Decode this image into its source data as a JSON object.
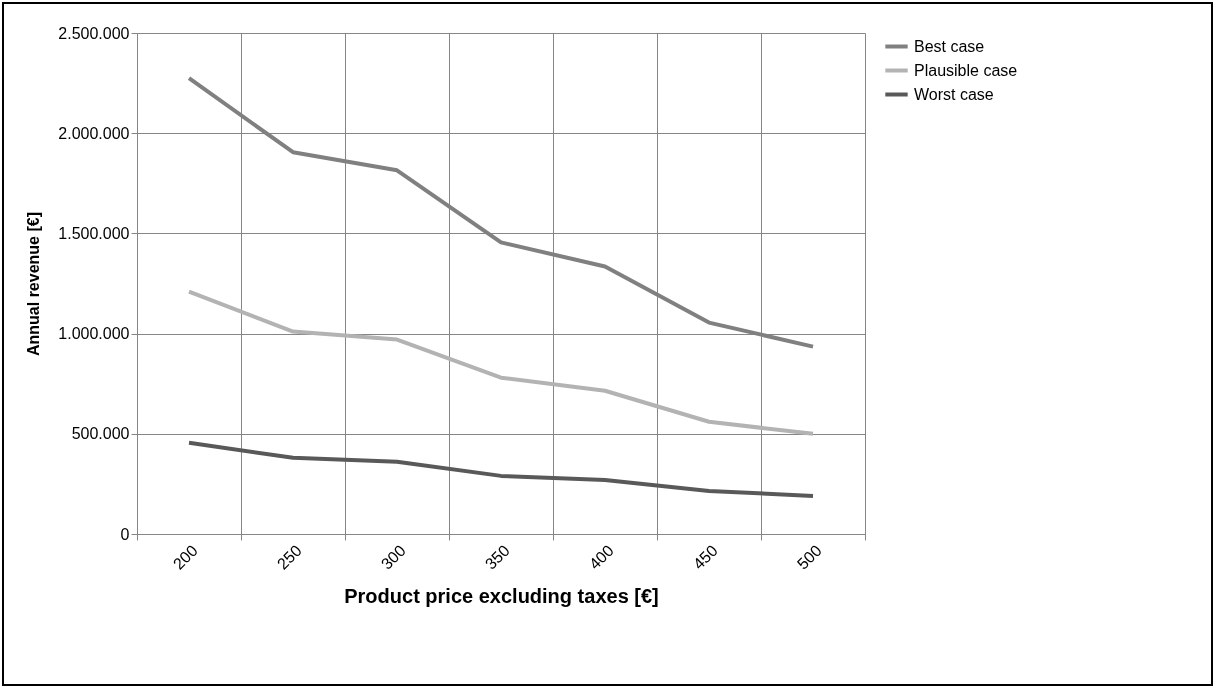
{
  "chart_data": {
    "type": "line",
    "xlabel": "Product price excluding taxes [€]",
    "ylabel": "Annual revenue [€]",
    "categories": [
      "200",
      "250",
      "300",
      "350",
      "400",
      "450",
      "500"
    ],
    "series": [
      {
        "name": "Best case",
        "color": "#808080",
        "values": [
          2275000,
          1905000,
          1815000,
          1455000,
          1335000,
          1055000,
          935000
        ]
      },
      {
        "name": "Plausible case",
        "color": "#b3b3b3",
        "values": [
          1210000,
          1010000,
          970000,
          780000,
          715000,
          560000,
          500000
        ]
      },
      {
        "name": "Worst case",
        "color": "#595959",
        "values": [
          455000,
          380000,
          360000,
          290000,
          270000,
          215000,
          190000
        ]
      }
    ],
    "ylim": [
      0,
      2500000
    ],
    "yticks": [
      0,
      {
        "value": 500000,
        "label": "500.000"
      },
      {
        "value": 1000000,
        "label": "1.000.000"
      },
      {
        "value": 1500000,
        "label": "1.500.000"
      },
      {
        "value": 2000000,
        "label": "2.000.000"
      },
      {
        "value": 2500000,
        "label": "2.500.000"
      }
    ],
    "grid": true,
    "legend": "right",
    "marker": "none",
    "line_style": "solid"
  }
}
